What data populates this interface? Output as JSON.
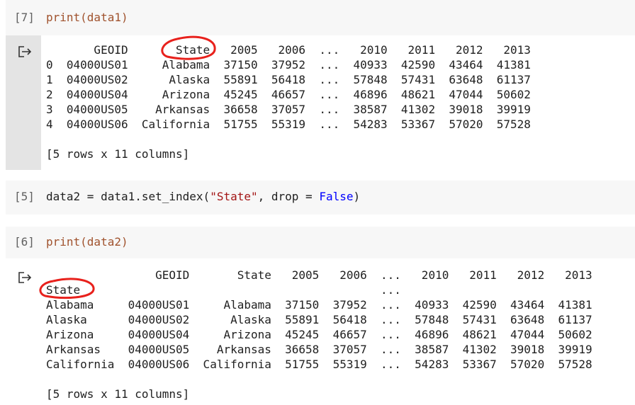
{
  "cells": [
    {
      "prompt": "[7]",
      "code": [
        "print(data1)"
      ],
      "output": {
        "lines": [
          "       GEOID       State   2005   2006  ...   2010   2011   2012   2013",
          "0  04000US01     Alabama  37150  37952  ...  40933  42590  43464  41381",
          "1  04000US02      Alaska  55891  56418  ...  57848  57431  63648  61137",
          "2  04000US04     Arizona  45245  46657  ...  46896  48621  47044  50602",
          "3  04000US05    Arkansas  36658  37057  ...  38587  41302  39018  39919",
          "4  04000US06  California  51755  55319  ...  54283  53367  57020  57528"
        ],
        "footer": "[5 rows x 11 columns]"
      }
    },
    {
      "prompt": "[5]",
      "code": [
        "data2 = data1.set_index(",
        "\"State\"",
        ", drop = ",
        "False",
        ")"
      ]
    },
    {
      "prompt": "[6]",
      "code": [
        "print(data2)"
      ],
      "output": {
        "lines": [
          "                GEOID       State   2005   2006  ...   2010   2011   2012   2013",
          "State                                            ...                            ",
          "Alabama     04000US01     Alabama  37150  37952  ...  40933  42590  43464  41381",
          "Alaska      04000US02      Alaska  55891  56418  ...  57848  57431  63648  61137",
          "Arizona     04000US04     Arizona  45245  46657  ...  46896  48621  47044  50602",
          "Arkansas    04000US05    Arkansas  36658  37057  ...  38587  41302  39018  39919",
          "California  04000US06  California  51755  55319  ...  54283  53367  57020  57528"
        ],
        "footer": "[5 rows x 11 columns]"
      }
    }
  ]
}
